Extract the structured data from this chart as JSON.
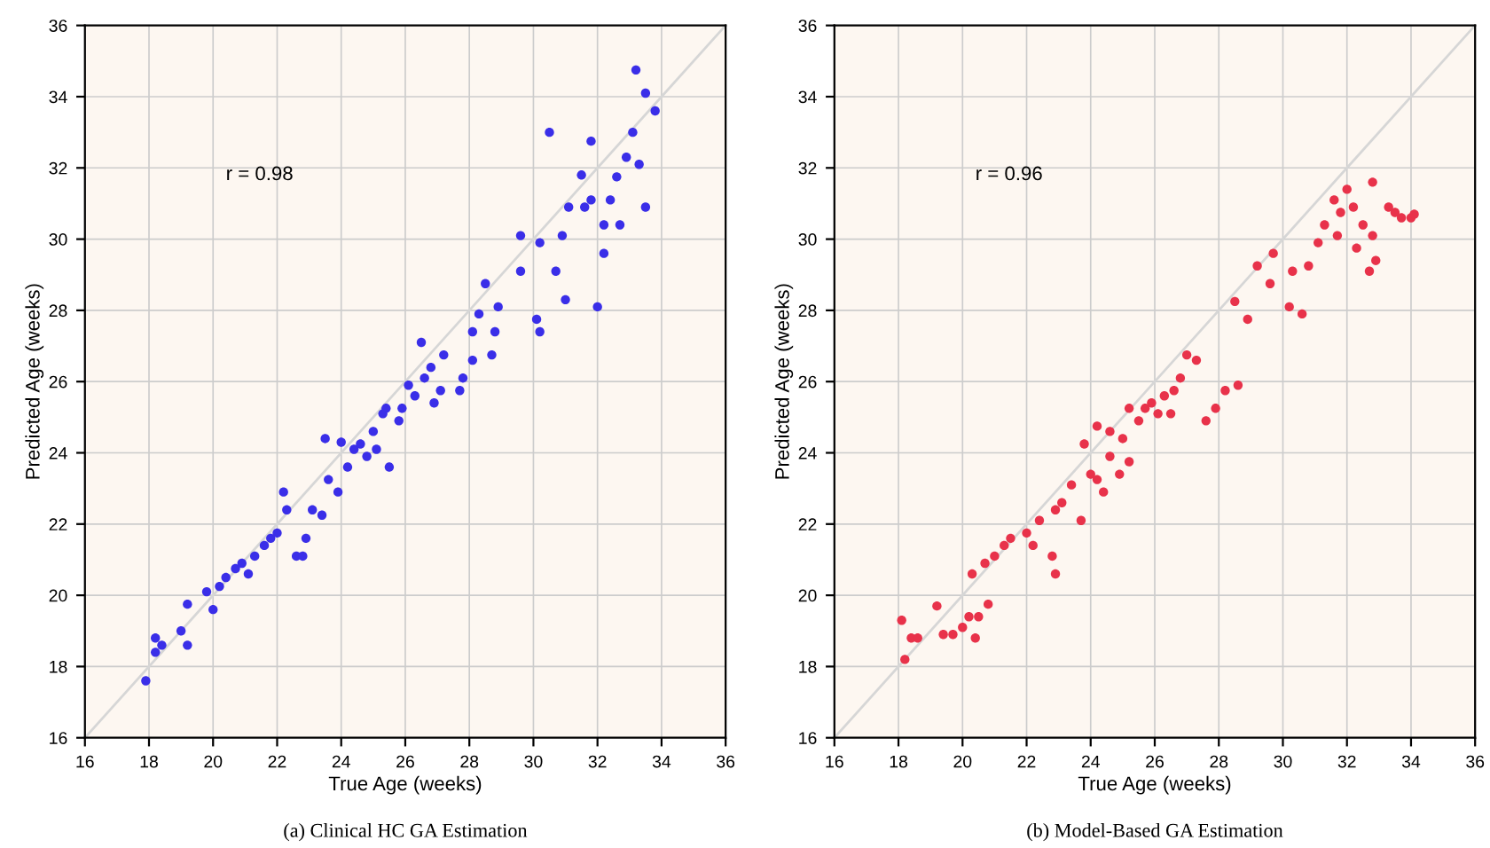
{
  "chart_data": [
    {
      "type": "scatter",
      "title": "(a) Clinical HC GA Estimation",
      "xlabel": "True Age (weeks)",
      "ylabel": "Predicted Age (weeks)",
      "annotations": [
        "r = 0.98"
      ],
      "xlim": [
        16,
        36
      ],
      "ylim": [
        16,
        36
      ],
      "xticks": [
        16,
        18,
        20,
        22,
        24,
        26,
        28,
        30,
        32,
        34,
        36
      ],
      "yticks": [
        16,
        18,
        20,
        22,
        24,
        26,
        28,
        30,
        32,
        34,
        36
      ],
      "grid": true,
      "series": [
        {
          "type": "line",
          "color": "#d6d6d6",
          "x": [
            16,
            36
          ],
          "values": [
            16,
            36
          ]
        },
        {
          "marker": "circle",
          "color": "#3a2ee8",
          "x": [
            17.9,
            18.2,
            18.2,
            18.4,
            19.0,
            19.2,
            19.2,
            19.8,
            20.0,
            20.2,
            20.4,
            20.7,
            20.9,
            21.1,
            21.3,
            21.6,
            21.8,
            22.0,
            22.2,
            22.3,
            22.6,
            22.8,
            22.9,
            23.1,
            23.4,
            23.6,
            23.5,
            24.0,
            23.9,
            24.2,
            24.4,
            24.6,
            24.8,
            25.0,
            25.3,
            25.4,
            25.1,
            25.5,
            25.8,
            25.9,
            26.1,
            26.3,
            26.5,
            26.6,
            26.8,
            26.9,
            27.1,
            27.2,
            27.7,
            27.8,
            28.1,
            28.1,
            28.3,
            28.5,
            28.7,
            28.8,
            28.9,
            29.6,
            30.1,
            30.2,
            30.2,
            30.7,
            30.9,
            31.1,
            31.0,
            31.5,
            31.6,
            31.8,
            31.8,
            32.0,
            32.2,
            32.2,
            32.4,
            32.6,
            32.7,
            32.9,
            33.1,
            33.3,
            33.2,
            33.5,
            33.5,
            33.8,
            30.5,
            29.6
          ],
          "values": [
            17.6,
            18.4,
            18.8,
            18.6,
            19.0,
            18.6,
            19.75,
            20.1,
            19.6,
            20.25,
            20.5,
            20.75,
            20.9,
            20.6,
            21.1,
            21.4,
            21.6,
            21.75,
            22.9,
            22.4,
            21.1,
            21.1,
            21.6,
            22.4,
            22.25,
            23.25,
            24.4,
            24.3,
            22.9,
            23.6,
            24.1,
            24.25,
            23.9,
            24.6,
            25.1,
            25.25,
            24.1,
            23.6,
            24.9,
            25.25,
            25.9,
            25.6,
            27.1,
            26.1,
            26.4,
            25.4,
            25.75,
            26.75,
            25.75,
            26.1,
            27.4,
            26.6,
            27.9,
            28.75,
            26.75,
            27.4,
            28.1,
            29.1,
            27.75,
            27.4,
            29.9,
            29.1,
            30.1,
            30.9,
            28.3,
            31.8,
            30.9,
            32.75,
            31.1,
            28.1,
            29.6,
            30.4,
            31.1,
            31.75,
            30.4,
            32.3,
            33.0,
            32.1,
            34.75,
            34.1,
            30.9,
            33.6,
            33.0,
            30.1
          ]
        }
      ]
    },
    {
      "type": "scatter",
      "title": "(b) Model-Based GA Estimation",
      "xlabel": "True Age (weeks)",
      "ylabel": "Predicted Age (weeks)",
      "annotations": [
        "r = 0.96"
      ],
      "xlim": [
        16,
        36
      ],
      "ylim": [
        16,
        36
      ],
      "xticks": [
        16,
        18,
        20,
        22,
        24,
        26,
        28,
        30,
        32,
        34,
        36
      ],
      "yticks": [
        16,
        18,
        20,
        22,
        24,
        26,
        28,
        30,
        32,
        34,
        36
      ],
      "grid": true,
      "series": [
        {
          "type": "line",
          "color": "#d6d6d6",
          "x": [
            16,
            36
          ],
          "values": [
            16,
            36
          ]
        },
        {
          "marker": "circle",
          "color": "#e8324a",
          "x": [
            18.2,
            18.1,
            18.4,
            18.6,
            19.2,
            19.4,
            19.7,
            20.0,
            20.2,
            20.4,
            20.5,
            20.8,
            20.3,
            20.7,
            21.0,
            21.3,
            21.5,
            22.0,
            22.2,
            22.4,
            22.8,
            22.9,
            22.9,
            23.1,
            23.4,
            23.7,
            24.0,
            24.2,
            24.4,
            24.6,
            24.9,
            25.2,
            23.8,
            24.2,
            24.6,
            25.0,
            25.2,
            25.5,
            25.7,
            25.9,
            26.1,
            26.3,
            26.5,
            26.6,
            26.8,
            27.0,
            27.3,
            27.6,
            27.9,
            28.2,
            28.6,
            28.5,
            28.9,
            29.2,
            29.6,
            29.7,
            30.2,
            30.3,
            30.6,
            30.8,
            31.1,
            31.3,
            31.6,
            31.7,
            31.8,
            32.0,
            32.2,
            32.3,
            32.5,
            32.8,
            32.8,
            32.9,
            32.7,
            33.3,
            33.5,
            33.7,
            34.0,
            34.1
          ],
          "values": [
            18.2,
            19.3,
            18.8,
            18.8,
            19.7,
            18.9,
            18.9,
            19.1,
            19.4,
            18.8,
            19.4,
            19.75,
            20.6,
            20.9,
            21.1,
            21.4,
            21.6,
            21.75,
            21.4,
            22.1,
            21.1,
            20.6,
            22.4,
            22.6,
            23.1,
            22.1,
            23.4,
            23.25,
            22.9,
            23.9,
            23.4,
            23.75,
            24.25,
            24.75,
            24.6,
            24.4,
            25.25,
            24.9,
            25.25,
            25.4,
            25.1,
            25.6,
            25.1,
            25.75,
            26.1,
            26.75,
            26.6,
            24.9,
            25.25,
            25.75,
            25.9,
            28.25,
            27.75,
            29.25,
            28.75,
            29.6,
            28.1,
            29.1,
            27.9,
            29.25,
            29.9,
            30.4,
            31.1,
            30.1,
            30.75,
            31.4,
            30.9,
            29.75,
            30.4,
            30.1,
            31.6,
            29.4,
            29.1,
            30.9,
            30.75,
            30.6,
            30.6,
            30.7
          ]
        }
      ]
    }
  ]
}
